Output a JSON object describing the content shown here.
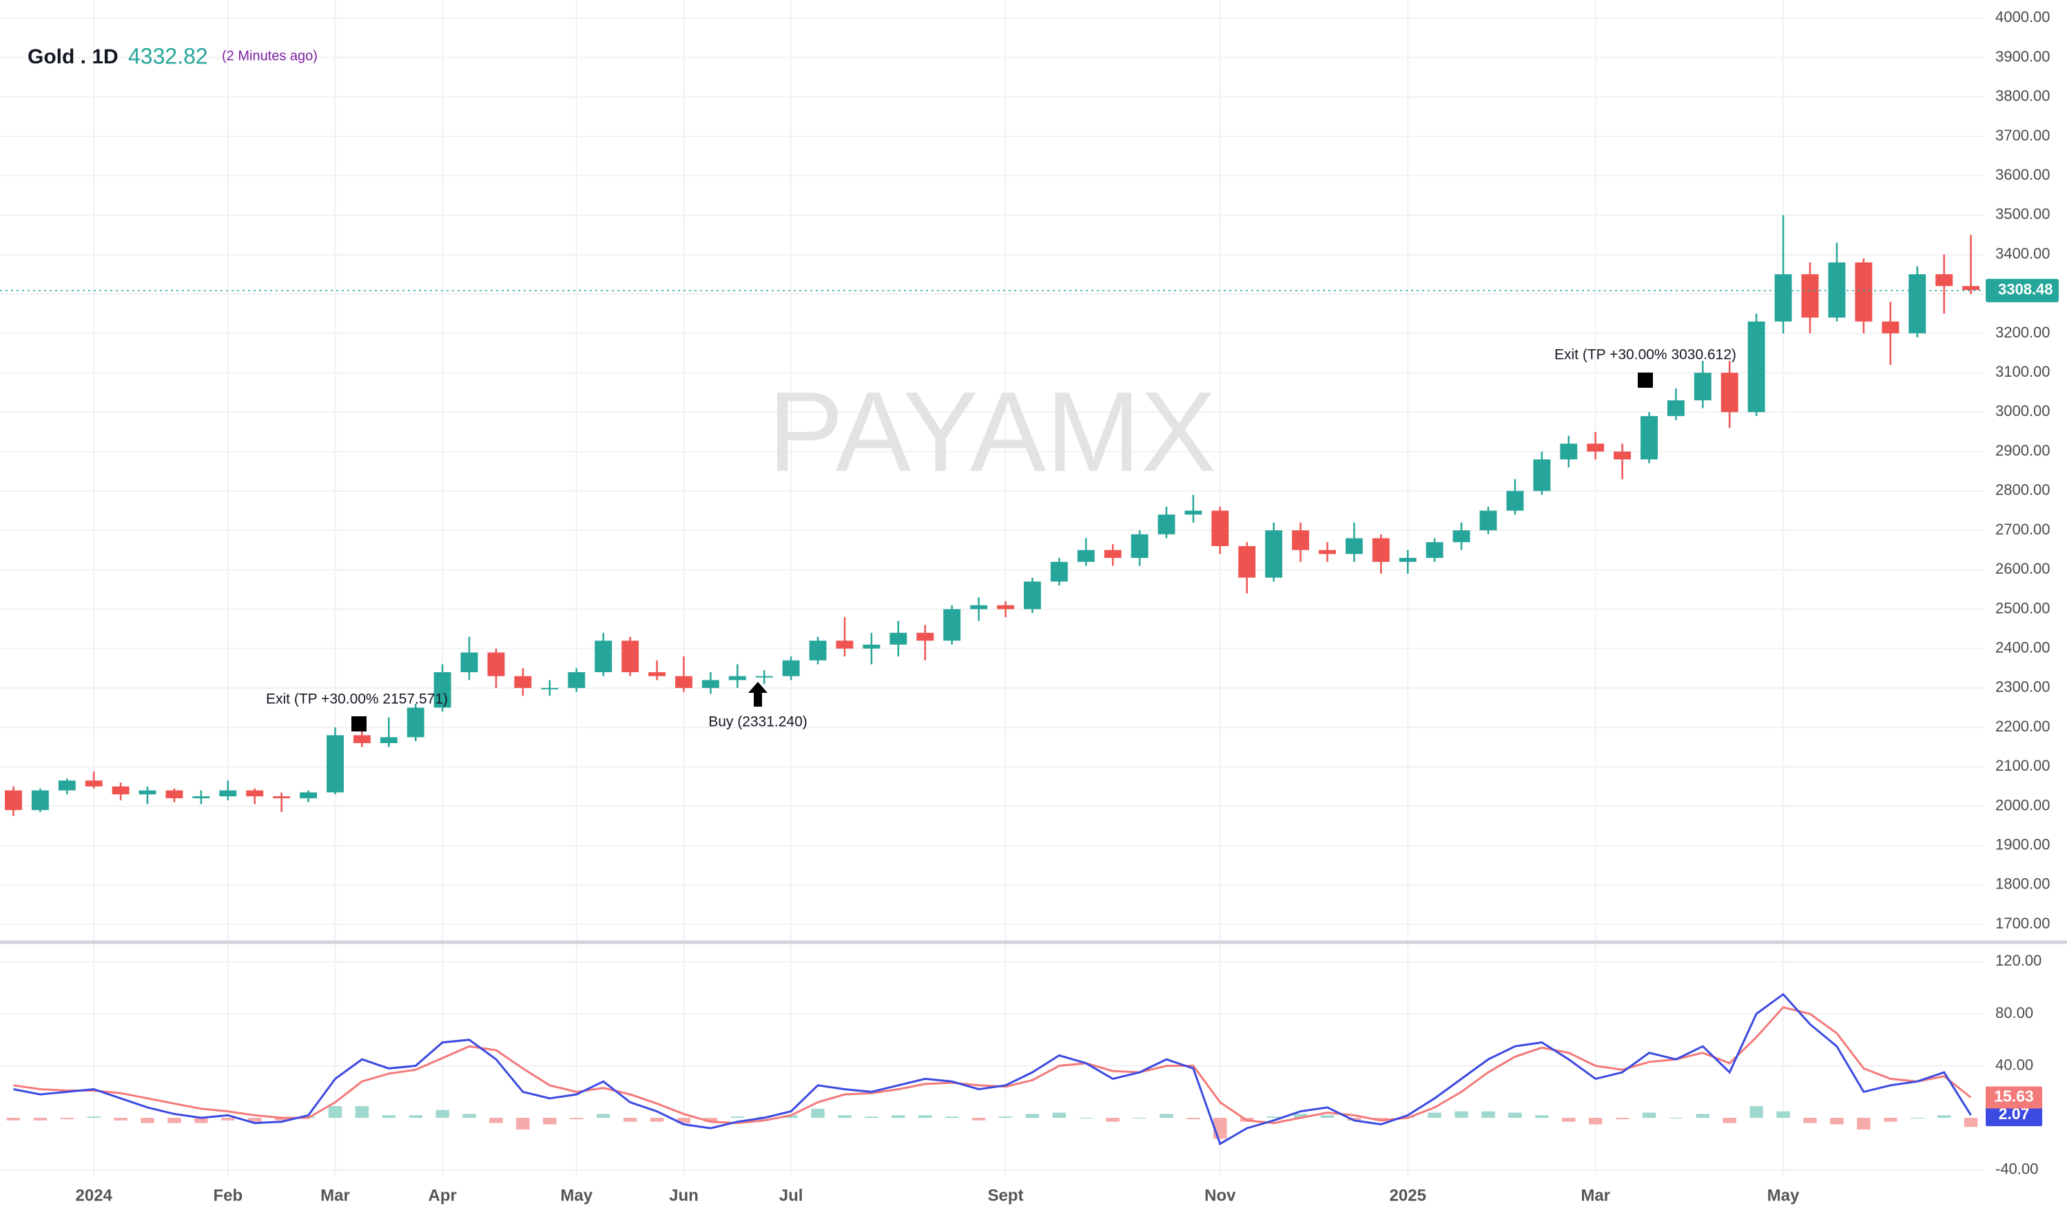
{
  "header": {
    "symbol": "Gold . 1D",
    "price": "4332.82",
    "updated": "(2 Minutes ago)",
    "watermark": "PAYAMX"
  },
  "annotations": [
    "Exit (TP +30.00% 2157.571)",
    "Buy (2331.240)",
    "Exit (TP +30.00% 3030.612)"
  ],
  "chart_data": [
    {
      "type": "candlestick",
      "categories": [
        null,
        null,
        null,
        "2024",
        null,
        null,
        null,
        null,
        "Feb",
        null,
        null,
        null,
        "Mar",
        null,
        null,
        null,
        "Apr",
        null,
        null,
        null,
        null,
        "May",
        null,
        null,
        null,
        "Jun",
        null,
        null,
        null,
        "Jul",
        null,
        null,
        null,
        null,
        null,
        null,
        null,
        "Sept",
        null,
        null,
        null,
        null,
        null,
        null,
        null,
        "Nov",
        null,
        null,
        null,
        null,
        null,
        null,
        "2025",
        null,
        null,
        null,
        null,
        null,
        null,
        "Mar",
        null,
        null,
        null,
        null,
        null,
        null,
        "May",
        null,
        null,
        null,
        null,
        null,
        null,
        null
      ],
      "open": [
        2040,
        1990,
        2040,
        2065,
        2050,
        2030,
        2040,
        2020,
        2025,
        2040,
        2025,
        2020,
        2035,
        2180,
        2160,
        2175,
        2250,
        2340,
        2390,
        2330,
        2300,
        2300,
        2340,
        2420,
        2340,
        2330,
        2300,
        2320,
        2330,
        2330,
        2370,
        2420,
        2400,
        2410,
        2440,
        2420,
        2500,
        2510,
        2500,
        2570,
        2620,
        2650,
        2630,
        2690,
        2740,
        2750,
        2660,
        2580,
        2700,
        2650,
        2640,
        2680,
        2620,
        2630,
        2670,
        2700,
        2750,
        2800,
        2880,
        2920,
        2900,
        2880,
        2990,
        3030,
        3100,
        3000,
        3230,
        3350,
        3240,
        3380,
        3230,
        3200,
        3350,
        3320
      ],
      "high": [
        2050,
        2045,
        2070,
        2088,
        2060,
        2050,
        2045,
        2040,
        2065,
        2045,
        2035,
        2040,
        2200,
        2195,
        2225,
        2260,
        2360,
        2430,
        2400,
        2350,
        2320,
        2350,
        2440,
        2430,
        2370,
        2380,
        2340,
        2360,
        2345,
        2380,
        2430,
        2480,
        2440,
        2470,
        2460,
        2510,
        2530,
        2520,
        2580,
        2630,
        2680,
        2665,
        2700,
        2760,
        2790,
        2760,
        2670,
        2720,
        2720,
        2670,
        2720,
        2690,
        2650,
        2680,
        2720,
        2760,
        2830,
        2900,
        2940,
        2950,
        2920,
        3000,
        3060,
        3130,
        3130,
        3250,
        3500,
        3380,
        3430,
        3390,
        3280,
        3370,
        3400,
        3450
      ],
      "low": [
        1975,
        1985,
        2030,
        2045,
        2015,
        2005,
        2010,
        2005,
        2015,
        2005,
        1985,
        2010,
        2030,
        2150,
        2150,
        2165,
        2240,
        2320,
        2300,
        2280,
        2280,
        2290,
        2330,
        2330,
        2320,
        2290,
        2285,
        2300,
        2310,
        2320,
        2360,
        2380,
        2360,
        2380,
        2370,
        2410,
        2470,
        2480,
        2490,
        2560,
        2610,
        2610,
        2610,
        2680,
        2720,
        2640,
        2540,
        2570,
        2620,
        2620,
        2620,
        2590,
        2590,
        2620,
        2650,
        2690,
        2740,
        2790,
        2860,
        2880,
        2830,
        2870,
        2980,
        3010,
        2960,
        2990,
        3200,
        3200,
        3230,
        3200,
        3120,
        3190,
        3250,
        3300
      ],
      "close": [
        1990,
        2040,
        2065,
        2050,
        2030,
        2040,
        2020,
        2025,
        2040,
        2025,
        2020,
        2035,
        2180,
        2160,
        2175,
        2250,
        2340,
        2390,
        2330,
        2300,
        2300,
        2340,
        2420,
        2340,
        2330,
        2300,
        2320,
        2330,
        2330,
        2370,
        2420,
        2400,
        2410,
        2440,
        2420,
        2500,
        2510,
        2500,
        2570,
        2620,
        2650,
        2630,
        2690,
        2740,
        2750,
        2660,
        2580,
        2700,
        2650,
        2640,
        2680,
        2620,
        2630,
        2670,
        2700,
        2750,
        2800,
        2880,
        2920,
        2900,
        2880,
        2990,
        3030,
        3100,
        3000,
        3230,
        3350,
        3240,
        3380,
        3230,
        3200,
        3350,
        3320,
        3310
      ],
      "up_color": "#26a69a",
      "down_color": "#ef5350",
      "last_price": 3308.48,
      "ylim": [
        1660,
        4046
      ],
      "yticks": [
        {
          "value": 1700,
          "label": "1700.00"
        },
        {
          "value": 1800,
          "label": "1800.00"
        },
        {
          "value": 1900,
          "label": "1900.00"
        },
        {
          "value": 2000,
          "label": "2000.00"
        },
        {
          "value": 2100,
          "label": "2100.00"
        },
        {
          "value": 2200,
          "label": "2200.00"
        },
        {
          "value": 2300,
          "label": "2300.00"
        },
        {
          "value": 2400,
          "label": "2400.00"
        },
        {
          "value": 2500,
          "label": "2500.00"
        },
        {
          "value": 2600,
          "label": "2600.00"
        },
        {
          "value": 2700,
          "label": "2700.00"
        },
        {
          "value": 2800,
          "label": "2800.00"
        },
        {
          "value": 2900,
          "label": "2900.00"
        },
        {
          "value": 3000,
          "label": "3000.00"
        },
        {
          "value": 3100,
          "label": "3100.00"
        },
        {
          "value": 3200,
          "label": "3200.00"
        },
        {
          "value": 3300,
          "label": "3300.00"
        },
        {
          "value": 3400,
          "label": "3400.00"
        },
        {
          "value": 3500,
          "label": "3500.00"
        },
        {
          "value": 3600,
          "label": "3600.00"
        },
        {
          "value": 3700,
          "label": "3700.00"
        },
        {
          "value": 3800,
          "label": "3800.00"
        },
        {
          "value": 3900,
          "label": "3900.00"
        },
        {
          "value": 4000,
          "label": "4000.00"
        }
      ],
      "grid": true
    },
    {
      "type": "macd",
      "series": [
        {
          "color": "#3b4ae0",
          "values": [
            22,
            18,
            20,
            22,
            15,
            8,
            3,
            0,
            2,
            -4,
            -3,
            2,
            30,
            45,
            38,
            40,
            58,
            60,
            45,
            20,
            15,
            18,
            28,
            12,
            5,
            -5,
            -8,
            -3,
            0,
            5,
            25,
            22,
            20,
            25,
            30,
            28,
            22,
            25,
            35,
            48,
            42,
            30,
            35,
            45,
            38,
            -20,
            -8,
            -2,
            5,
            8,
            -2,
            -5,
            2,
            15,
            30,
            45,
            55,
            58,
            45,
            30,
            35,
            50,
            45,
            55,
            35,
            80,
            95,
            72,
            55,
            20,
            25,
            28,
            35,
            2.07
          ]
        },
        {
          "color": "#f47a7a",
          "values": [
            25,
            22,
            21,
            21,
            19,
            15,
            11,
            7,
            5,
            2,
            0,
            0,
            12,
            28,
            34,
            37,
            46,
            55,
            52,
            38,
            25,
            20,
            23,
            18,
            11,
            3,
            -3,
            -4,
            -2,
            2,
            12,
            18,
            19,
            22,
            26,
            27,
            25,
            24,
            29,
            40,
            42,
            36,
            35,
            40,
            40,
            12,
            -2,
            -4,
            0,
            4,
            2,
            -2,
            0,
            8,
            20,
            35,
            47,
            54,
            50,
            40,
            37,
            43,
            45,
            50,
            42,
            62,
            85,
            80,
            65,
            38,
            30,
            28,
            32,
            15.63
          ]
        }
      ],
      "histogram": {
        "up_color": "#9fd8cf",
        "down_color": "#f6aaaa",
        "values": [
          -2,
          -2,
          -1,
          1,
          -2,
          -4,
          -4,
          -4,
          -2,
          -3,
          -2,
          1,
          9,
          9,
          2,
          2,
          6,
          3,
          -4,
          -9,
          -5,
          -1,
          3,
          -3,
          -3,
          -4,
          -3,
          1,
          1,
          2,
          7,
          2,
          1,
          2,
          2,
          1,
          -2,
          1,
          3,
          4,
          0,
          -3,
          0,
          3,
          -1,
          -16,
          -3,
          1,
          3,
          2,
          -2,
          -2,
          1,
          4,
          5,
          5,
          4,
          2,
          -3,
          -5,
          -1,
          4,
          0,
          3,
          -4,
          9,
          5,
          -4,
          -5,
          -9,
          -3,
          0,
          2,
          -7
        ]
      },
      "ylim": [
        -45,
        134
      ],
      "yticks": [
        {
          "value": 120,
          "label": "120.00"
        },
        {
          "value": 80,
          "label": "80.00"
        },
        {
          "value": 40,
          "label": "40.00"
        },
        {
          "value": -40,
          "label": "-40.00"
        }
      ]
    }
  ]
}
